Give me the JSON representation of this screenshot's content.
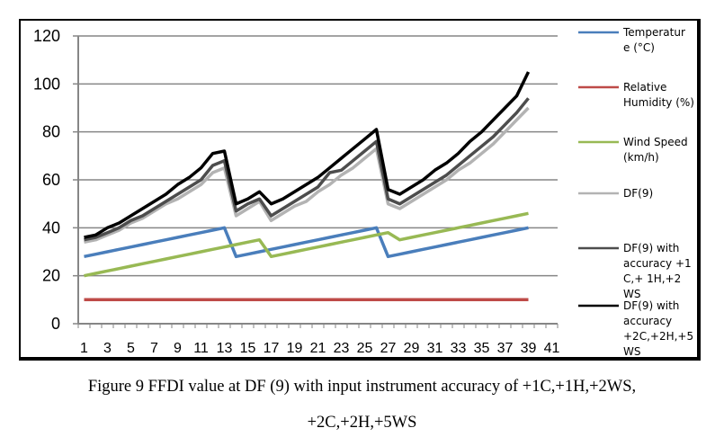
{
  "chart_data": {
    "type": "line",
    "title": "",
    "xlabel": "",
    "ylabel": "",
    "ylim": [
      0,
      120
    ],
    "yticks": [
      0,
      20,
      40,
      60,
      80,
      100,
      120
    ],
    "x_categories_count": 41,
    "xtick_labels": [
      "1",
      "3",
      "5",
      "7",
      "9",
      "11",
      "13",
      "15",
      "17",
      "19",
      "21",
      "23",
      "25",
      "27",
      "29",
      "31",
      "33",
      "35",
      "37",
      "39",
      "41"
    ],
    "grid": "horizontal",
    "legend_position": "right",
    "x": [
      1,
      2,
      3,
      4,
      5,
      6,
      7,
      8,
      9,
      10,
      11,
      12,
      13,
      14,
      15,
      16,
      17,
      18,
      19,
      20,
      21,
      22,
      23,
      24,
      25,
      26,
      27,
      28,
      29,
      30,
      31,
      32,
      33,
      34,
      35,
      36,
      37,
      38,
      39
    ],
    "series": [
      {
        "name": "Temperature (°C)",
        "legend_label": [
          "Temperatur",
          "e (°C)"
        ],
        "color": "#4a7ebb",
        "values": [
          28,
          29,
          30,
          31,
          32,
          33,
          34,
          35,
          36,
          37,
          38,
          39,
          40,
          28,
          29,
          30,
          31,
          32,
          33,
          34,
          35,
          36,
          37,
          38,
          39,
          40,
          28,
          29,
          30,
          31,
          32,
          33,
          34,
          35,
          36,
          37,
          38,
          39,
          40
        ]
      },
      {
        "name": "Relative Humidity (%)",
        "legend_label": [
          "Relative",
          "Humidity (%)"
        ],
        "color": "#be4b48",
        "values": [
          10,
          10,
          10,
          10,
          10,
          10,
          10,
          10,
          10,
          10,
          10,
          10,
          10,
          10,
          10,
          10,
          10,
          10,
          10,
          10,
          10,
          10,
          10,
          10,
          10,
          10,
          10,
          10,
          10,
          10,
          10,
          10,
          10,
          10,
          10,
          10,
          10,
          10,
          10
        ]
      },
      {
        "name": "Wind Speed (km/h)",
        "legend_label": [
          "Wind Speed",
          "(km/h)"
        ],
        "color": "#98b954",
        "values": [
          20,
          21,
          22,
          23,
          24,
          25,
          26,
          27,
          28,
          29,
          30,
          31,
          32,
          33,
          34,
          35,
          28,
          29,
          30,
          31,
          32,
          33,
          34,
          35,
          36,
          37,
          38,
          35,
          36,
          37,
          38,
          39,
          40,
          41,
          42,
          43,
          44,
          45,
          46
        ]
      },
      {
        "name": "DF(9)",
        "legend_label": [
          "DF(9)"
        ],
        "color": "#b3b3b3",
        "values": [
          34,
          35,
          37,
          39,
          42,
          44,
          47,
          50,
          52,
          55,
          58,
          63,
          65,
          45,
          48,
          51,
          43,
          46,
          49,
          51,
          55,
          58,
          62,
          65,
          69,
          73,
          50,
          48,
          51,
          54,
          57,
          60,
          64,
          67,
          71,
          75,
          80,
          85,
          90
        ]
      },
      {
        "name": "DF(9) with accuracy +1C,+1H,+2WS",
        "legend_label": [
          "DF(9) with",
          "accuracy +1",
          "C,+ 1H,+2",
          "WS"
        ],
        "color": "#4d4d4d",
        "values": [
          35,
          36,
          38,
          40,
          43,
          45,
          48,
          51,
          54,
          57,
          60,
          66,
          68,
          47,
          50,
          52,
          45,
          48,
          51,
          54,
          57,
          63,
          64,
          68,
          72,
          76,
          52,
          50,
          53,
          56,
          59,
          62,
          66,
          70,
          74,
          78,
          83,
          88,
          94
        ]
      },
      {
        "name": "DF(9) with accuracy +2C,+2H,+5WS",
        "legend_label": [
          "DF(9) with",
          "accuracy",
          "+2C,+2H,+5",
          "WS"
        ],
        "color": "#000000",
        "values": [
          36,
          37,
          40,
          42,
          45,
          48,
          51,
          54,
          58,
          61,
          65,
          71,
          72,
          50,
          52,
          55,
          50,
          52,
          55,
          58,
          61,
          65,
          69,
          73,
          77,
          81,
          56,
          54,
          57,
          60,
          64,
          67,
          71,
          76,
          80,
          85,
          90,
          95,
          105
        ]
      }
    ]
  },
  "caption": {
    "line1": "Figure 9  FFDI value at DF (9) with input instrument accuracy of +1C,+1H,+2WS,",
    "line2": "+2C,+2H,+5WS"
  }
}
